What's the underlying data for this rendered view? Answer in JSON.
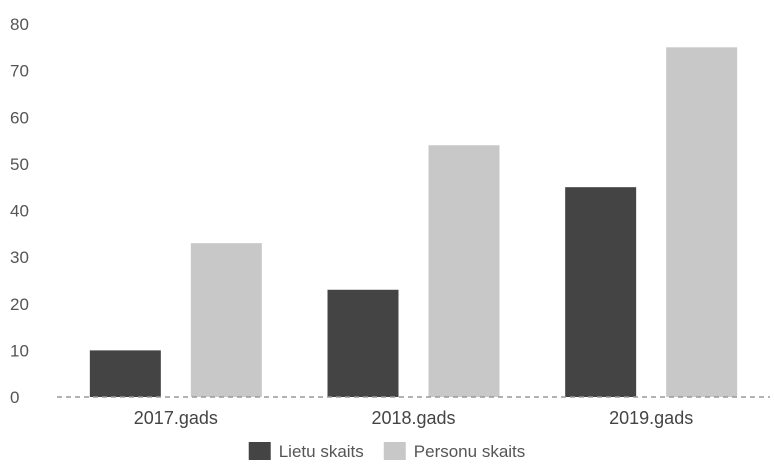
{
  "chart_data": {
    "type": "bar",
    "categories": [
      "2017.gads",
      "2018.gads",
      "2019.gads"
    ],
    "series": [
      {
        "name": "Lietu skaits",
        "values": [
          10,
          23,
          45
        ],
        "color": "#444444"
      },
      {
        "name": "Personu skaits",
        "values": [
          33,
          54,
          75
        ],
        "color": "#c8c8c8"
      }
    ],
    "ylim": [
      0,
      80
    ],
    "yticks": [
      "0",
      "10",
      "20",
      "30",
      "40",
      "50",
      "60",
      "70",
      "80"
    ],
    "grid": false,
    "baseline": "dashed",
    "legend_position": "bottom-center"
  }
}
